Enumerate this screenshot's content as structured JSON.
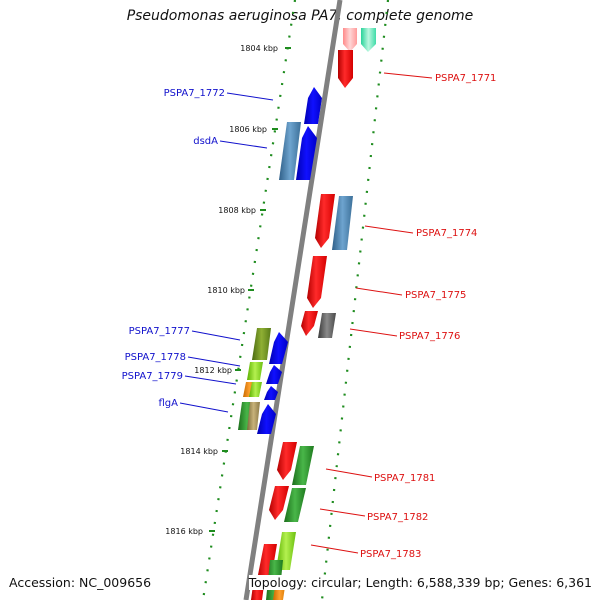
{
  "title": "Pseudomonas aeruginosa PA7, complete genome",
  "footer": {
    "accession": "Accession: NC_009656",
    "topology": "Topology: circular; Length: 6,588,339 bp; Genes: 6,361"
  },
  "colors": {
    "backbone": "#808080",
    "dots": "#1e8c1e",
    "right_label": "#dd1111",
    "left_label": "#1111cc"
  },
  "ticks": [
    {
      "label": "1804 kbp"
    },
    {
      "label": "1806 kbp"
    },
    {
      "label": "1808 kbp"
    },
    {
      "label": "1810 kbp"
    },
    {
      "label": "1812 kbp"
    },
    {
      "label": "1814 kbp"
    },
    {
      "label": "1816 kbp"
    }
  ],
  "left_labels": [
    {
      "text": "PSPA7_1772"
    },
    {
      "text": "dsdA"
    },
    {
      "text": "PSPA7_1777"
    },
    {
      "text": "PSPA7_1778"
    },
    {
      "text": "PSPA7_1779"
    },
    {
      "text": "flgA"
    }
  ],
  "right_labels": [
    {
      "text": "PSPA7_1771"
    },
    {
      "text": "PSPA7_1774"
    },
    {
      "text": "PSPA7_1775"
    },
    {
      "text": "PSPA7_1776"
    },
    {
      "text": "PSPA7_1781"
    },
    {
      "text": "PSPA7_1782"
    },
    {
      "text": "PSPA7_1783"
    }
  ]
}
